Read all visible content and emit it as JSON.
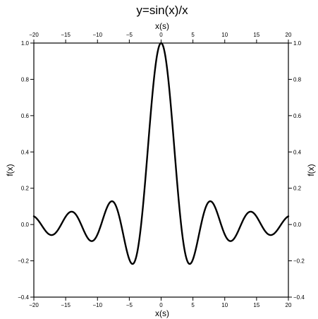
{
  "chart_data": {
    "type": "line",
    "title": "y=sin(x)/x",
    "xlabel": "x(s)",
    "xlabel_top": "x(s)",
    "ylabel": "f(x)",
    "ylabel_right": "f(x)",
    "xlim": [
      -20,
      20
    ],
    "ylim": [
      -0.4,
      1.0
    ],
    "x_ticks": [
      -20,
      -15,
      -10,
      -5,
      0,
      5,
      10,
      15,
      20
    ],
    "x_tick_labels": [
      "−20",
      "−15",
      "−10",
      "−5",
      "0",
      "5",
      "10",
      "15",
      "20"
    ],
    "y_ticks": [
      -0.4,
      -0.2,
      0.0,
      0.2,
      0.4,
      0.6,
      0.8,
      1.0
    ],
    "y_tick_labels": [
      "−0.4",
      "−0.2",
      "0.0",
      "0.2",
      "0.4",
      "0.6",
      "0.8",
      "1.0"
    ],
    "grid": false,
    "series": [
      {
        "color": "#000000",
        "x": [
          -20,
          -18,
          -17.2,
          -16,
          -15,
          -14.1,
          -13,
          -12,
          -11,
          -10.9,
          -10,
          -9,
          -8,
          -7.7,
          -7,
          -6,
          -5,
          -4.49,
          -4,
          -3,
          -2,
          -1,
          0,
          1,
          2,
          3,
          4,
          4.49,
          5,
          6,
          7,
          7.7,
          8,
          9,
          10,
          10.9,
          11,
          12,
          13,
          14.1,
          15,
          16,
          17.2,
          18,
          20
        ],
        "values": [
          0.046,
          -0.042,
          -0.058,
          -0.018,
          0.043,
          0.071,
          0.032,
          -0.045,
          -0.091,
          -0.091,
          -0.054,
          0.046,
          0.124,
          0.128,
          0.094,
          -0.047,
          -0.192,
          -0.217,
          -0.189,
          0.047,
          0.455,
          0.841,
          1.0,
          0.841,
          0.455,
          0.047,
          -0.189,
          -0.217,
          -0.192,
          -0.047,
          0.094,
          0.128,
          0.124,
          0.046,
          -0.054,
          -0.091,
          -0.091,
          -0.045,
          0.032,
          0.071,
          0.043,
          -0.018,
          -0.058,
          -0.042,
          0.046
        ]
      }
    ]
  }
}
